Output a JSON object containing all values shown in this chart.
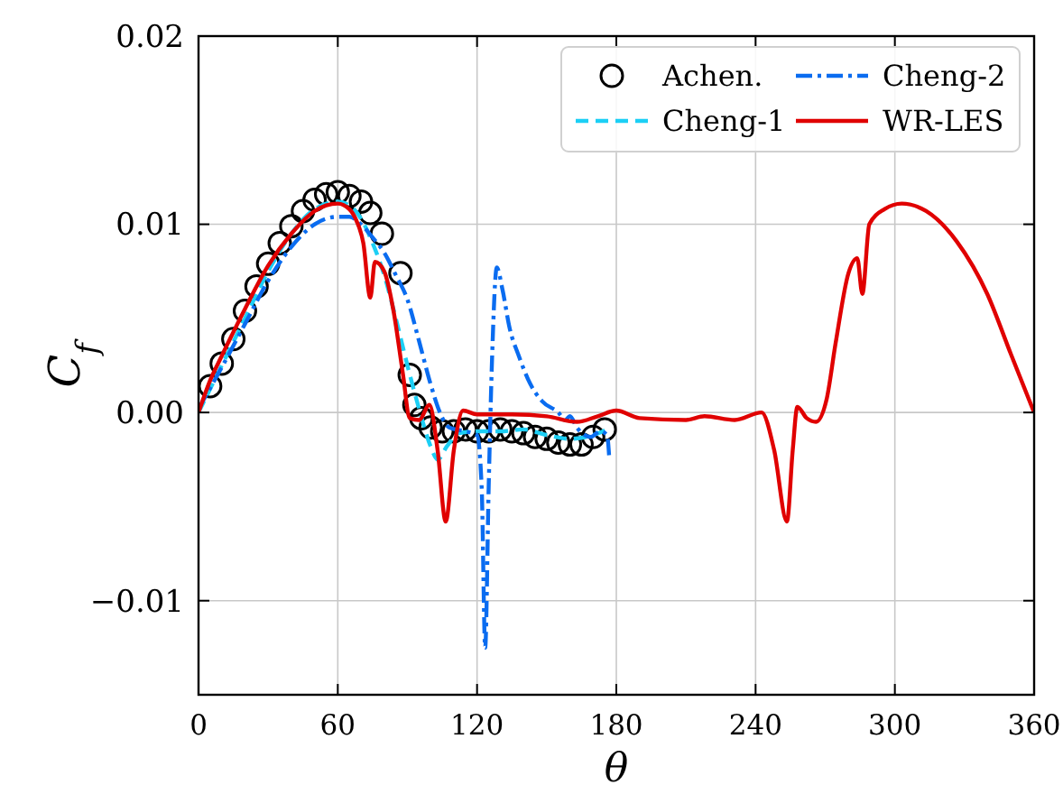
{
  "chart_data": {
    "type": "line",
    "xlabel": "θ",
    "ylabel": "C$_{f}$",
    "xlim": [
      0,
      360
    ],
    "xticks": [
      0,
      60,
      120,
      180,
      240,
      300,
      360
    ],
    "ylim": [
      -0.015,
      0.02
    ],
    "yticks": [
      {
        "value": -0.01,
        "label": "−0.01"
      },
      {
        "value": 0,
        "label": "0.00"
      },
      {
        "value": 0.01,
        "label": "0.01"
      },
      {
        "value": 0.02,
        "label": "0.02"
      }
    ],
    "grid": true,
    "legend": "top right",
    "series": [
      {
        "name": "Achen.",
        "type": "scatter",
        "marker": "circle",
        "color": "#000000",
        "x": [
          5,
          10,
          15,
          20,
          25,
          30,
          35,
          40,
          45,
          50,
          55,
          60,
          65,
          70,
          74,
          79,
          87,
          91,
          93,
          96,
          100,
          105,
          110,
          115,
          120,
          125,
          130,
          135,
          140,
          145,
          150,
          155,
          160,
          165,
          170,
          175
        ],
        "values": [
          0.0014,
          0.0026,
          0.0039,
          0.0054,
          0.0067,
          0.0079,
          0.009,
          0.0099,
          0.0107,
          0.0113,
          0.0116,
          0.0117,
          0.0115,
          0.0112,
          0.0106,
          0.0095,
          0.0074,
          0.002,
          0.0004,
          -0.0003,
          -0.0008,
          -0.001,
          -0.001,
          -0.0009,
          -0.001,
          -0.001,
          -0.0009,
          -0.001,
          -0.0011,
          -0.0013,
          -0.0014,
          -0.0016,
          -0.0017,
          -0.0017,
          -0.0013,
          -0.0009
        ]
      },
      {
        "name": "Cheng-1",
        "type": "line",
        "line_style": "dashed",
        "color": "#1ccff5",
        "x": [
          0,
          10,
          20,
          30,
          40,
          50,
          60,
          65,
          70,
          75,
          80,
          85,
          90,
          95,
          100,
          103,
          107,
          112,
          120,
          130,
          140,
          150,
          160,
          170,
          176
        ],
        "values": [
          0,
          0.0025,
          0.005,
          0.0075,
          0.0095,
          0.0108,
          0.0112,
          0.011,
          0.0103,
          0.009,
          0.0073,
          0.005,
          0.0025,
          0.0002,
          -0.0018,
          -0.0025,
          -0.0018,
          -0.0011,
          -0.001,
          -0.001,
          -0.0009,
          -0.0012,
          -0.0014,
          -0.0012,
          -0.0009
        ]
      },
      {
        "name": "Cheng-2",
        "type": "line",
        "line_style": "dashdot",
        "color": "#0a6cf0",
        "x": [
          0,
          10,
          20,
          30,
          40,
          50,
          60,
          65,
          70,
          75,
          80,
          85,
          90,
          95,
          100,
          104,
          108,
          115,
          120,
          122,
          123.5,
          125,
          126.5,
          128.5,
          131,
          134,
          138,
          143,
          148,
          155,
          158,
          160,
          163,
          169,
          173,
          176,
          177
        ],
        "values": [
          0.0002,
          0.0024,
          0.0047,
          0.007,
          0.0088,
          0.01,
          0.0104,
          0.0104,
          0.01,
          0.0093,
          0.0085,
          0.0073,
          0.006,
          0.0038,
          0.0015,
          0,
          -0.0008,
          -0.001,
          -0.0012,
          -0.004,
          -0.0125,
          -0.004,
          0.003,
          0.0077,
          0.0065,
          0.0045,
          0.003,
          0.0015,
          0.0006,
          0,
          -0.0004,
          -0.0002,
          -0.0008,
          -0.0013,
          -0.001,
          -0.0012,
          -0.0025
        ]
      },
      {
        "name": "WR-LES",
        "type": "line",
        "line_style": "solid",
        "color": "#e00000",
        "x": [
          0,
          5,
          10,
          20,
          30,
          40,
          50,
          55,
          60,
          65,
          68,
          71,
          74,
          76,
          80,
          84,
          88,
          91,
          95,
          99.5,
          103,
          106.5,
          110,
          114,
          120,
          135,
          150,
          163,
          172,
          180,
          190,
          210,
          218,
          231,
          242.6,
          248,
          253.5,
          256,
          258,
          262,
          266,
          270.6,
          274.5,
          280,
          283.8,
          286,
          289,
          295.5,
          303,
          313.5,
          326.6,
          339.8,
          350,
          360
        ],
        "values": [
          0,
          0.0017,
          0.003,
          0.0055,
          0.0078,
          0.0095,
          0.0107,
          0.011,
          0.0111,
          0.0108,
          0.0102,
          0.009,
          0.0061,
          0.008,
          0.0075,
          0.0054,
          0.0021,
          -0.0003,
          -0.0004,
          0.0004,
          -0.002,
          -0.0058,
          -0.002,
          0.0001,
          -0.0001,
          -0.0001,
          -0.0002,
          -0.0005,
          -0.0002,
          0.0001,
          -0.0003,
          -0.0004,
          -0.0002,
          -0.0004,
          0,
          -0.002,
          -0.0058,
          -0.002,
          0.0003,
          -0.0003,
          -0.0005,
          0.0007,
          0.0037,
          0.0074,
          0.0082,
          0.0063,
          0.01,
          0.0108,
          0.0111,
          0.0107,
          0.0091,
          0.0063,
          0.0031,
          0
        ]
      }
    ]
  }
}
